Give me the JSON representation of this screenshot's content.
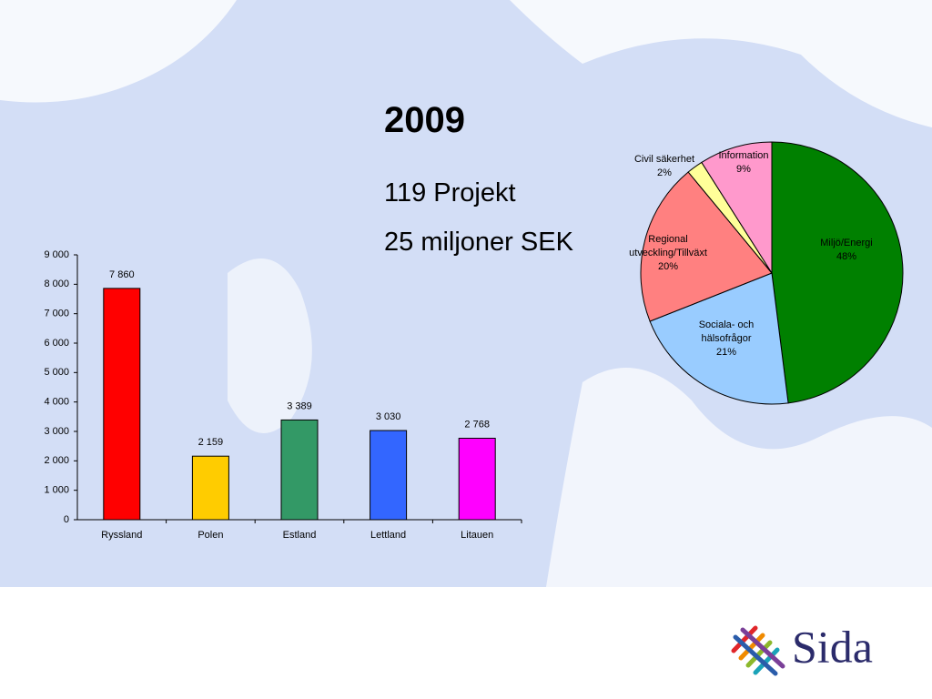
{
  "slide": {
    "title": "2009",
    "lines": [
      "119 Projekt",
      "25 miljoner SEK"
    ],
    "logo": "Sida"
  },
  "chart_data": [
    {
      "type": "bar",
      "categories": [
        "Ryssland",
        "Polen",
        "Estland",
        "Lettland",
        "Litauen"
      ],
      "values": [
        7860,
        2159,
        3389,
        3030,
        2768
      ],
      "value_labels": [
        "7 860",
        "2 159",
        "3 389",
        "3 030",
        "2 768"
      ],
      "colors": [
        "#ff0000",
        "#ffcc00",
        "#339966",
        "#3366ff",
        "#ff00ff"
      ],
      "ylim": [
        0,
        9000
      ],
      "yticks": [
        0,
        {
          "value": 1000,
          "label": "1 000"
        },
        {
          "value": 2000,
          "label": "2 000"
        },
        {
          "value": 3000,
          "label": "3 000"
        },
        {
          "value": 4000,
          "label": "4 000"
        },
        {
          "value": 5000,
          "label": "5 000"
        },
        {
          "value": 6000,
          "label": "6 000"
        },
        {
          "value": 7000,
          "label": "7 000"
        },
        {
          "value": 8000,
          "label": "8 000"
        },
        {
          "value": 9000,
          "label": "9 000"
        }
      ]
    },
    {
      "type": "pie",
      "categories": [
        "Miljö/Energi",
        "Sociala- och hälsofrågor",
        "Regional utveckling/Tillväxt",
        "Civil säkerhet",
        "Information"
      ],
      "values": [
        48,
        21,
        20,
        2,
        9
      ],
      "value_labels": [
        "48%",
        "21%",
        "20%",
        "2%",
        "9%"
      ],
      "colors": [
        "#008000",
        "#99ccff",
        "#ff8080",
        "#ffff99",
        "#ff99cc"
      ]
    }
  ]
}
